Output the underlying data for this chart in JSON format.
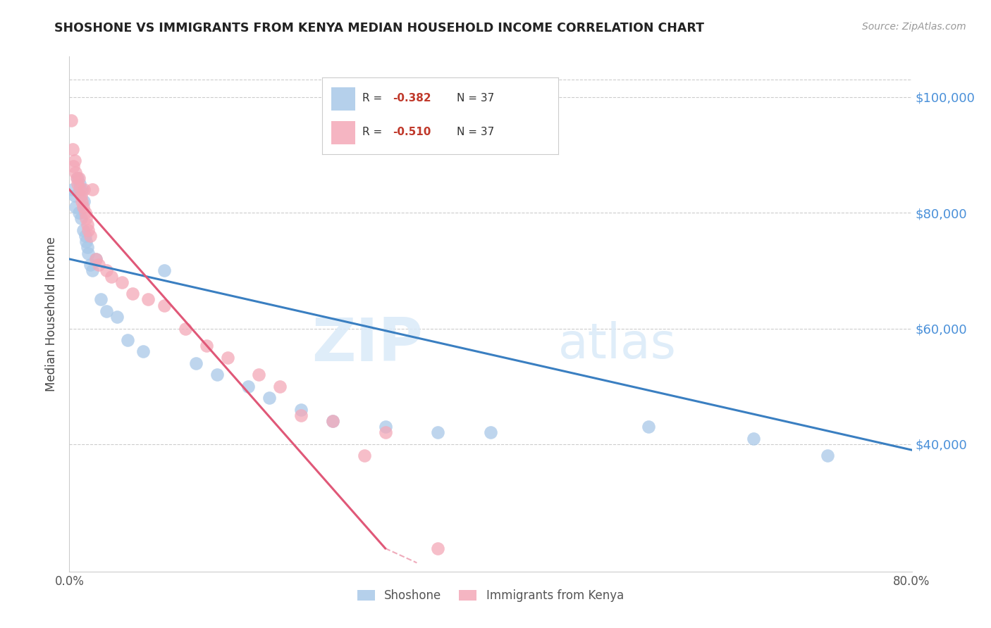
{
  "title": "SHOSHONE VS IMMIGRANTS FROM KENYA MEDIAN HOUSEHOLD INCOME CORRELATION CHART",
  "source": "Source: ZipAtlas.com",
  "ylabel": "Median Household Income",
  "y_ticks": [
    40000,
    60000,
    80000,
    100000
  ],
  "y_tick_labels": [
    "$40,000",
    "$60,000",
    "$80,000",
    "$100,000"
  ],
  "x_min": 0.0,
  "x_max": 80.0,
  "y_min": 18000,
  "y_max": 107000,
  "watermark_zip": "ZIP",
  "watermark_atlas": "atlas",
  "blue_color": "#a8c8e8",
  "pink_color": "#f4a8b8",
  "blue_line_color": "#3a7fc1",
  "pink_line_color": "#e05878",
  "blue_line_x0": 0.0,
  "blue_line_x1": 80.0,
  "blue_line_y0": 72000,
  "blue_line_y1": 39000,
  "pink_line_x0": 0.0,
  "pink_line_x1": 30.0,
  "pink_line_y0": 84000,
  "pink_line_y1": 22000,
  "shoshone_x": [
    0.3,
    0.5,
    0.6,
    0.8,
    0.9,
    1.0,
    1.1,
    1.2,
    1.3,
    1.4,
    1.5,
    1.6,
    1.7,
    1.8,
    2.0,
    2.2,
    2.5,
    3.0,
    3.5,
    4.5,
    5.5,
    7.0,
    9.0,
    12.0,
    14.0,
    17.0,
    19.0,
    22.0,
    25.0,
    30.0,
    35.0,
    40.0,
    55.0,
    65.0,
    72.0
  ],
  "shoshone_y": [
    84000,
    83000,
    81000,
    86000,
    80000,
    85000,
    79000,
    84000,
    77000,
    82000,
    76000,
    75000,
    74000,
    73000,
    71000,
    70000,
    72000,
    65000,
    63000,
    62000,
    58000,
    56000,
    70000,
    54000,
    52000,
    50000,
    48000,
    46000,
    44000,
    43000,
    42000,
    42000,
    43000,
    41000,
    38000
  ],
  "kenya_x": [
    0.2,
    0.3,
    0.4,
    0.5,
    0.6,
    0.7,
    0.8,
    0.9,
    1.0,
    1.1,
    1.2,
    1.3,
    1.4,
    1.5,
    1.6,
    1.7,
    1.8,
    2.0,
    2.2,
    2.5,
    2.8,
    3.5,
    4.0,
    5.0,
    6.0,
    7.5,
    9.0,
    11.0,
    13.0,
    15.0,
    18.0,
    20.0,
    22.0,
    25.0,
    28.0,
    30.0,
    35.0
  ],
  "kenya_y": [
    96000,
    91000,
    88000,
    89000,
    87000,
    86000,
    85000,
    86000,
    84000,
    83000,
    82000,
    81000,
    84000,
    80000,
    79000,
    78000,
    77000,
    76000,
    84000,
    72000,
    71000,
    70000,
    69000,
    68000,
    66000,
    65000,
    64000,
    60000,
    57000,
    55000,
    52000,
    50000,
    45000,
    44000,
    38000,
    42000,
    22000
  ]
}
